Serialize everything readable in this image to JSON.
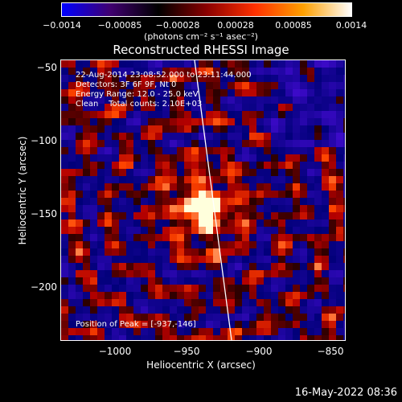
{
  "colorbar": {
    "ticks": [
      "−0.0014",
      "−0.00085",
      "−0.00028",
      "0.00028",
      "0.00085",
      "0.0014"
    ],
    "units": "(photons cm⁻² s⁻¹ asec⁻²)",
    "colors": [
      "#0000ff",
      "#400070",
      "#000000",
      "#8a0000",
      "#ff3000",
      "#ffa000",
      "#ffffff"
    ]
  },
  "chart_data": {
    "type": "heatmap",
    "title": "Reconstructed RHESSI Image",
    "xlabel": "Heliocentric X (arcsec)",
    "ylabel": "Heliocentric Y (arcsec)",
    "xlim": [
      -1035,
      -838
    ],
    "ylim": [
      -238,
      -44
    ],
    "x_ticks": [
      "−1000",
      "−950",
      "−900",
      "−850"
    ],
    "y_ticks": [
      "−50",
      "−100",
      "−150",
      "−200"
    ],
    "peak": {
      "x": -937,
      "y": -146
    },
    "value_range": [
      -0.0014,
      0.0014
    ]
  },
  "annotations": {
    "line1": "22-Aug-2014 23:08:52.000 to 23:11:44.000",
    "line2": "Detectors: 3F 6F 9F, Nt 0",
    "line3": "Energy Range: 12.0 - 25.0 keV",
    "line4": "Clean    Total counts: 2.10E+03",
    "peak_text": "Position of Peak = [-937,-146]"
  },
  "timestamp": "16-May-2022 08:36"
}
